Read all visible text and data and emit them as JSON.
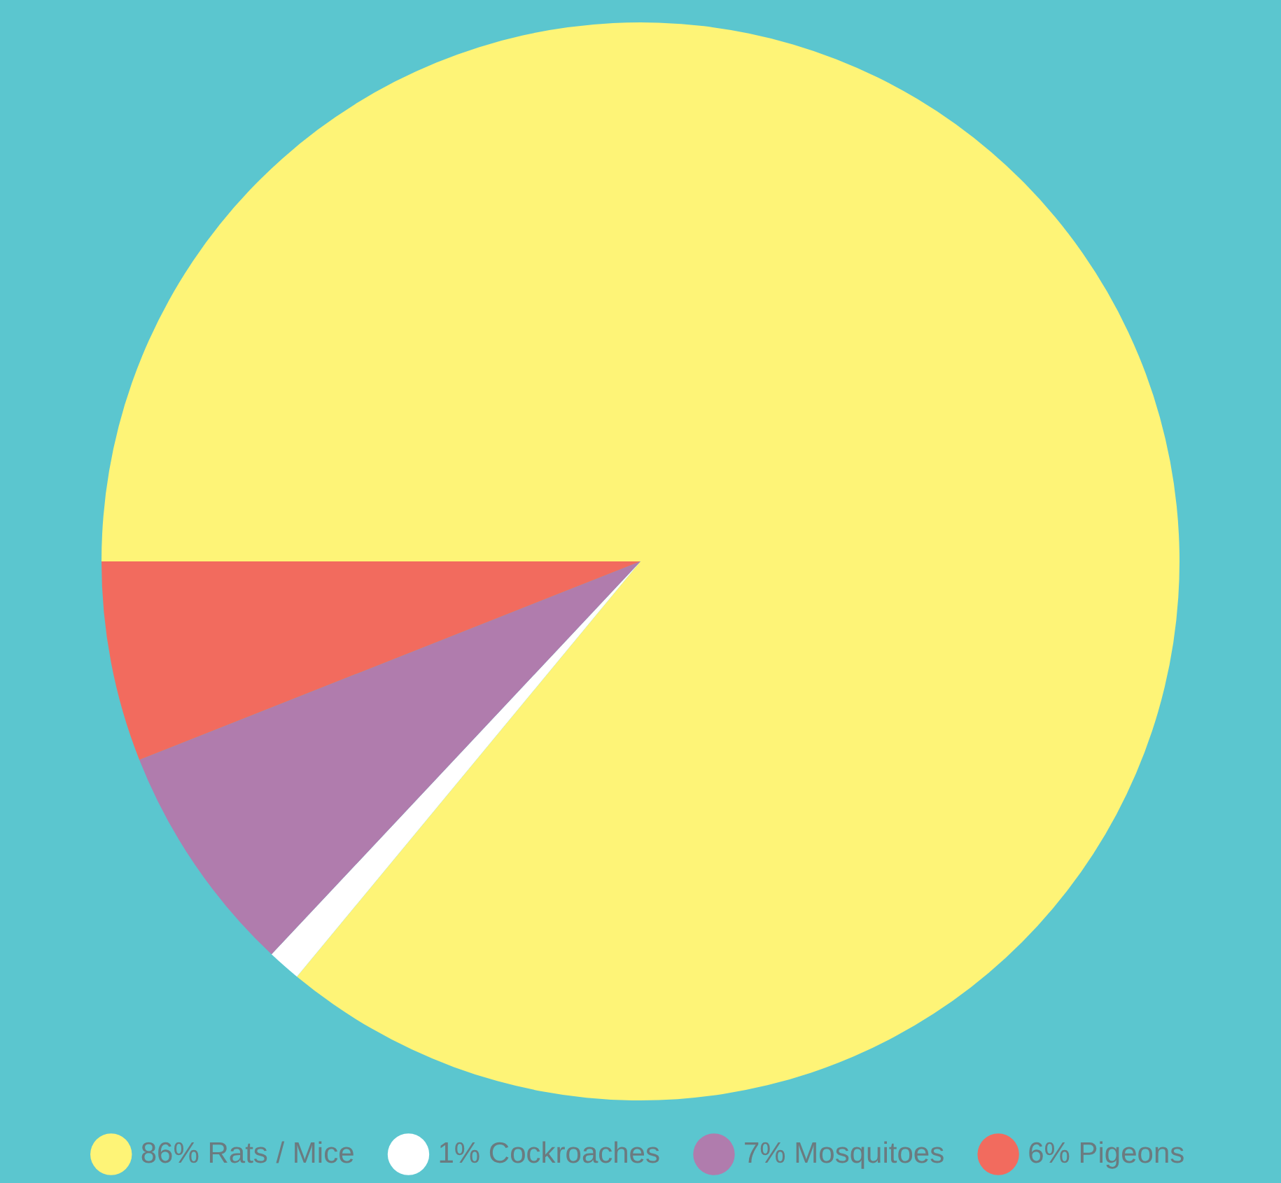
{
  "chart_data": {
    "type": "pie",
    "categories": [
      "86% Rats / Mice",
      "1% Cockroaches",
      "7% Mosquitoes",
      "6% Pigeons"
    ],
    "values": [
      86,
      1,
      7,
      6
    ],
    "colors": [
      "#fef477",
      "#ffffff",
      "#b07cad",
      "#f26b5e"
    ],
    "legend": "bottom"
  }
}
